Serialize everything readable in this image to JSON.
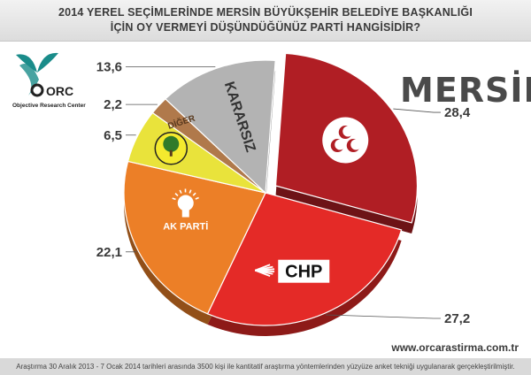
{
  "header": {
    "title_line1": "2014 YEREL SEÇİMLERİNDE MERSİN BÜYÜKŞEHİR BELEDİYE BAŞKANLIĞI",
    "title_line2": "İÇİN OY VERMEYİ DÜŞÜNDÜĞÜNÜZ PARTİ HANGİSİDİR?"
  },
  "logo": {
    "mark": "ORC",
    "caption": "Objective Research Center"
  },
  "region": "MERSİN",
  "website": "www.orcarastirma.com.tr",
  "footnote": "Araştırma 30 Aralık 2013 - 7 Ocak 2014 tarihleri arasında 3500 kişi ile kantitatif araştırma yöntemlerinden yüzyüze anket tekniği uygulanarak gerçekleştirilmiştir.",
  "chart_data": {
    "type": "pie",
    "slices": [
      {
        "name": "MHP",
        "label": "",
        "value": 28.4,
        "value_label": "28,4",
        "color": "#b01e24",
        "icon": "crescents-icon",
        "exploded": true
      },
      {
        "name": "CHP",
        "label": "CHP",
        "value": 27.2,
        "value_label": "27,2",
        "color": "#e42a27",
        "icon": "chp-arrows-icon"
      },
      {
        "name": "AK PARTİ",
        "label": "AK PARTİ",
        "value": 22.1,
        "value_label": "22,1",
        "color": "#ec7f27",
        "icon": "lightbulb-icon"
      },
      {
        "name": "BDP",
        "label": "",
        "value": 6.5,
        "value_label": "6,5",
        "color": "#e9e33b",
        "icon": "tree-icon"
      },
      {
        "name": "DİĞER",
        "label": "DİĞER",
        "value": 2.2,
        "value_label": "2,2",
        "color": "#b0794b",
        "icon": ""
      },
      {
        "name": "KARARSIZ",
        "label": "KARARSIZ",
        "value": 13.6,
        "value_label": "13,6",
        "color": "#b3b3b3",
        "icon": ""
      }
    ]
  }
}
